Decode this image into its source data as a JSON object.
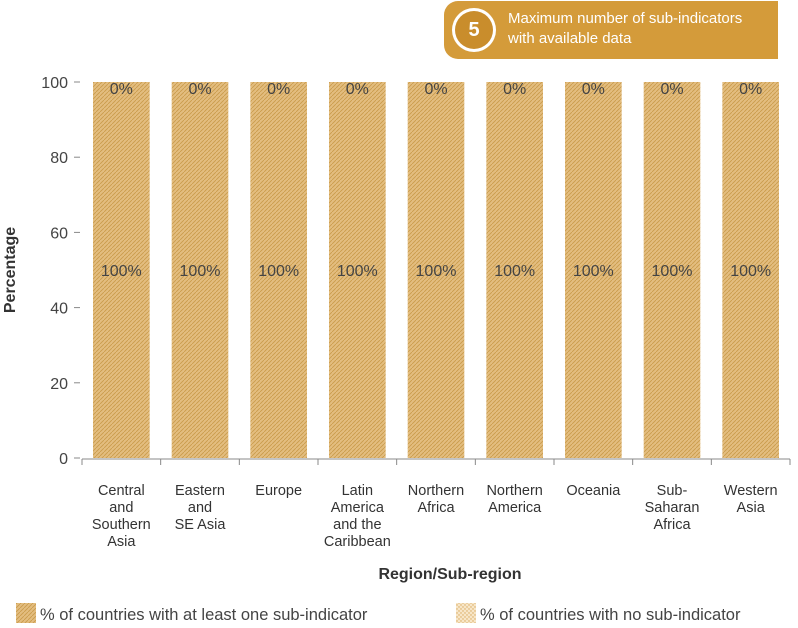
{
  "badge": {
    "number": "5",
    "text": "Maximum number of sub-indicators with available data"
  },
  "colors": {
    "bar": "#e3bd7f",
    "bar_hatch": "#c99a4a",
    "no_sub": "#f2dcb4",
    "badge": "#d49b3a",
    "axis": "#888888"
  },
  "chart_data": {
    "type": "bar",
    "stacked": true,
    "xlabel": "Region/Sub-region",
    "ylabel": "Percentage",
    "ylim": [
      0,
      100
    ],
    "yticks": [
      0,
      20,
      40,
      60,
      80,
      100
    ],
    "categories": [
      [
        "Central",
        "and",
        "Southern",
        "Asia"
      ],
      [
        "Eastern",
        "and",
        "SE Asia"
      ],
      [
        "Europe"
      ],
      [
        "Latin",
        "America",
        "and the",
        "Caribbean"
      ],
      [
        "Northern",
        "Africa"
      ],
      [
        "Northern",
        "America"
      ],
      [
        "Oceania"
      ],
      [
        "Sub-",
        "Saharan",
        "Africa"
      ],
      [
        "Western",
        "Asia"
      ]
    ],
    "series": [
      {
        "name": "% of countries with at least one sub-indicator",
        "values": [
          100,
          100,
          100,
          100,
          100,
          100,
          100,
          100,
          100
        ],
        "labels": [
          "100%",
          "100%",
          "100%",
          "100%",
          "100%",
          "100%",
          "100%",
          "100%",
          "100%"
        ]
      },
      {
        "name": "% of countries with no sub-indicator",
        "values": [
          0,
          0,
          0,
          0,
          0,
          0,
          0,
          0,
          0
        ],
        "labels": [
          "0%",
          "0%",
          "0%",
          "0%",
          "0%",
          "0%",
          "0%",
          "0%",
          "0%"
        ]
      }
    ],
    "legend": "bottom"
  }
}
